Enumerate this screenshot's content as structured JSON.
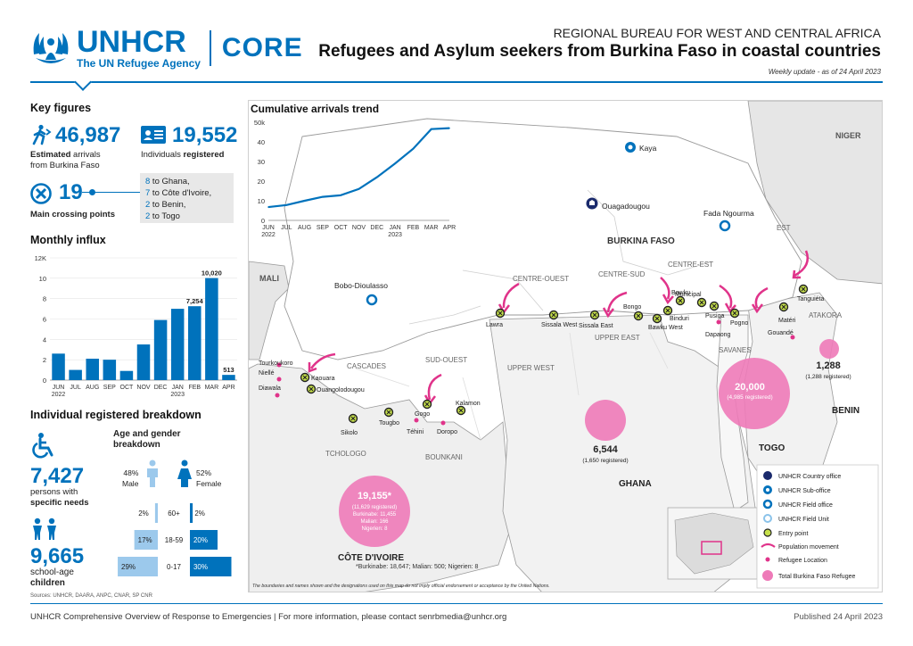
{
  "header": {
    "org_name": "UNHCR",
    "org_tagline": "The UN Refugee Agency",
    "core": "CORE",
    "region": "REGIONAL BUREAU FOR WEST AND CENTRAL AFRICA",
    "title": "Refugees and Asylum seekers from Burkina Faso in coastal countries",
    "update": "Weekly update - as of 24 April 2023"
  },
  "key_figures": {
    "title": "Key figures",
    "arrivals_value": "46,987",
    "arrivals_label_bold": "Estimated",
    "arrivals_label_1": " arrivals",
    "arrivals_label_2": "from Burkina Faso",
    "registered_value": "19,552",
    "registered_label_1": "Individuals ",
    "registered_label_bold": "registered",
    "crossing_value": "19",
    "crossing_label": "Main crossing points",
    "crossing_breakdown": [
      {
        "num": "8",
        "label": " to Ghana,"
      },
      {
        "num": "7",
        "label": " to Côte d'Ivoire,"
      },
      {
        "num": "2",
        "label": " to Benin,"
      },
      {
        "num": "2",
        "label": " to Togo"
      }
    ]
  },
  "monthly_influx": {
    "title": "Monthly influx"
  },
  "registered_breakdown": {
    "title": "Individual registered breakdown",
    "specific_needs_value": "7,427",
    "specific_needs_label_1": "persons with",
    "specific_needs_label_2": "specific needs",
    "school_value": "9,665",
    "school_label_1": "school-age",
    "school_label_2": "children",
    "age_title_1": "Age and gender",
    "age_title_2": "breakdown",
    "male_pct": "48%",
    "male_label": "Male",
    "female_pct": "52%",
    "female_label": "Female",
    "rows": [
      {
        "group": "60+",
        "male": "2%",
        "female": "2%",
        "male_v": 2,
        "female_v": 2
      },
      {
        "group": "18-59",
        "male": "17%",
        "female": "20%",
        "male_v": 17,
        "female_v": 20
      },
      {
        "group": "0-17",
        "male": "29%",
        "female": "30%",
        "male_v": 29,
        "female_v": 30
      }
    ],
    "sources": "Sources: UNHCR, DAARA, ANPC, CNAR, SP CNR"
  },
  "chart_data": [
    {
      "type": "line",
      "title": "Cumulative arrivals trend",
      "x": [
        "JUN 2022",
        "JUL",
        "AUG",
        "SEP",
        "OCT",
        "NOV",
        "DEC",
        "JAN 2023",
        "FEB",
        "MAR",
        "APR"
      ],
      "x_tick_labels": [
        "JUN",
        "JUL",
        "AUG",
        "SEP",
        "OCT",
        "NOV",
        "DEC",
        "JAN",
        "FEB",
        "MAR",
        "APR"
      ],
      "x_year_labels": [
        "2022",
        "2023"
      ],
      "series": [
        {
          "values": [
            6800,
            7800,
            10000,
            12000,
            12800,
            16000,
            22000,
            29000,
            36500,
            46500,
            46987
          ]
        }
      ],
      "y_tick_labels": [
        "0",
        "10",
        "20",
        "30",
        "40",
        "50k"
      ],
      "ylim": [
        0,
        50000
      ],
      "color": "#0072bc"
    },
    {
      "type": "bar",
      "title": "Monthly influx",
      "categories": [
        "JUN",
        "JUL",
        "AUG",
        "SEP",
        "OCT",
        "NOV",
        "DEC",
        "JAN",
        "FEB",
        "MAR",
        "APR"
      ],
      "x_year_labels": [
        "2022",
        "2023"
      ],
      "values": [
        2600,
        1000,
        2100,
        2000,
        900,
        3500,
        5900,
        7000,
        7254,
        10020,
        513
      ],
      "data_labels": [
        "",
        "",
        "",
        "",
        "",
        "",
        "",
        "",
        "7,254",
        "10,020",
        "513"
      ],
      "y_tick_labels": [
        "0",
        "2",
        "4",
        "6",
        "8",
        "10",
        "12K"
      ],
      "ylim": [
        0,
        12000
      ],
      "color": "#0072bc"
    }
  ],
  "map": {
    "countries": [
      "NIGER",
      "MALI",
      "BURKINA FASO",
      "GHANA",
      "TOGO",
      "BENIN",
      "CÔTE D'IVOIRE"
    ],
    "regions": [
      "EST",
      "CENTRE-OUEST",
      "CENTRE-SUD",
      "CENTRE-EST",
      "UPPER EAST",
      "SAVANES",
      "ATAKORA",
      "CASCADES",
      "SUD-OUEST",
      "UPPER WEST",
      "TCHOLOGO",
      "BOUNKANI"
    ],
    "offices": [
      "Kaya",
      "Ouagadougou",
      "Fada Ngourma",
      "Bobo-Dioulasso"
    ],
    "entry_points": [
      "Lawra",
      "Sissala West",
      "Sissala East",
      "Bongo",
      "Bawku",
      "Bawku West",
      "Binduri",
      "Municipal",
      "Pusiga",
      "Pogno",
      "Tanguiéta",
      "Matéri",
      "Kaouara",
      "Ouangolodougou",
      "Sikolo",
      "Tougbo",
      "Gogo",
      "Kalamon"
    ],
    "refugee_locations": [
      "Tourkoukoro",
      "Niellé",
      "Diawala",
      "Téhini",
      "Doropo",
      "Dapaong",
      "Gouandé"
    ],
    "ci_total": "19,155*",
    "ci_registered": "(11,629 registered)",
    "ci_breakdown_1": "Burkinabe: 11,455",
    "ci_breakdown_2": "Malian: 166",
    "ci_breakdown_3": "Nigerien: 8",
    "ci_footnote": "*Burkinabe: 18,647; Malian: 500; Nigerien: 8",
    "ghana_total": "6,544",
    "ghana_registered": "(1,650 registered)",
    "togo_total": "20,000",
    "togo_registered": "(4,985 registered)",
    "benin_total": "1,288",
    "benin_registered": "(1,288 registered)",
    "disclaimer": "The boundaries and names shown and the designations used on this map do not imply official endorsement or acceptance by the United Nations.",
    "legend": [
      "UNHCR Country office",
      "UNHCR Sub-office",
      "UNHCR Field office",
      "UNHCR Field Unit",
      "Entry point",
      "Population movement",
      "Refugee Location",
      "Total Burkina Faso Refugee"
    ]
  },
  "footer": {
    "left_1": "UNHCR Comprehensive Overview of Response to Emergencies",
    "left_2": " | For more information, please contact senrbmedia@unhcr.org",
    "right": "Published 24 April 2023"
  }
}
